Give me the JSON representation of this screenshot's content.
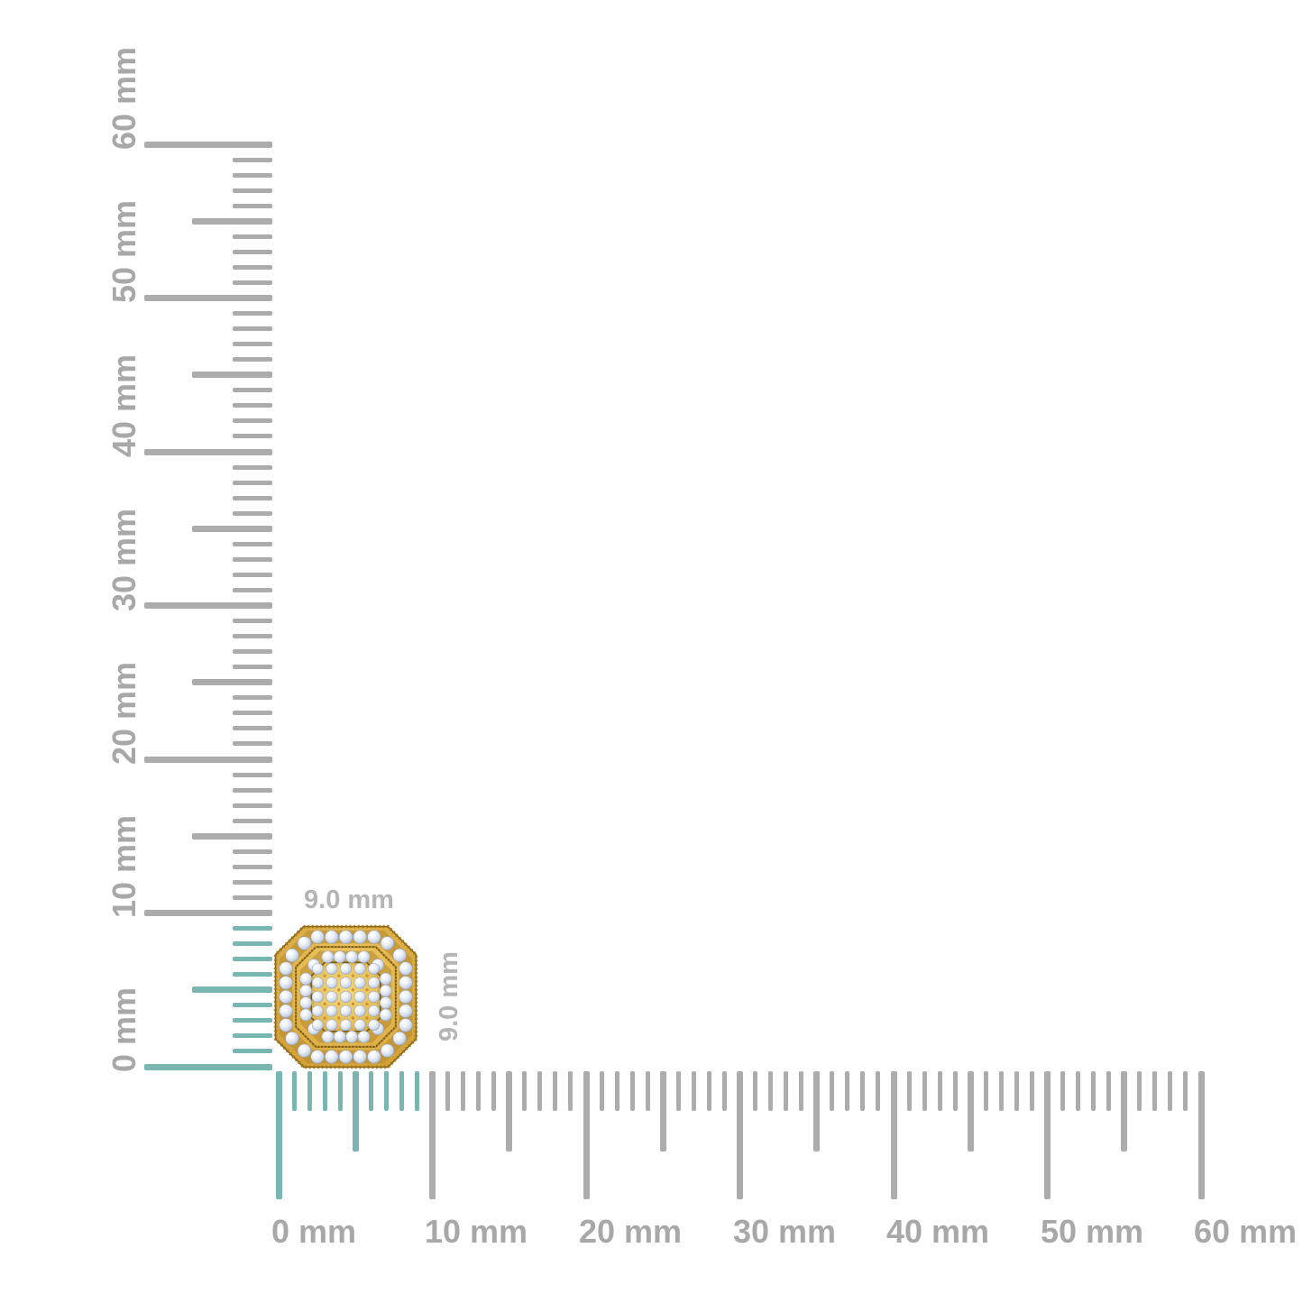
{
  "page": {
    "background": "#ffffff",
    "description": "Size guide: octagonal diamond cluster stud earring shown against millimeter rulers"
  },
  "item": {
    "name": "octagonal halo diamond cluster stud earring",
    "material": "yellow gold with round diamonds",
    "width_label": "9.0 mm",
    "height_label": "9.0 mm"
  },
  "rulers": {
    "unit": "mm",
    "min_mm": 0,
    "max_mm": 60,
    "minor_tick_every_mm": 1,
    "half_tick_every_mm": 5,
    "major_tick_every_mm": 10,
    "highlight_extent_mm": 9,
    "vertical_labels": [
      "0 mm",
      "10 mm",
      "20 mm",
      "30 mm",
      "40 mm",
      "50 mm",
      "60 mm"
    ],
    "horizontal_labels": [
      "0 mm",
      "10 mm",
      "20 mm",
      "30 mm",
      "40 mm",
      "50 mm",
      "60 mm"
    ],
    "colors": {
      "tick_gray": "#acacac",
      "tick_highlight_teal": "#79b5b1",
      "label_gray": "#a8a8a8",
      "item_label_gray": "#b5b5b5"
    }
  },
  "earring_colors": {
    "gold_light": "#f6dd8d",
    "gold_mid": "#e6bb52",
    "gold_deep": "#bb8a29",
    "gold_outline": "#8a6413",
    "channel_dark": "#7e5c10",
    "bead_gold": "#c1922e",
    "diamond_white": "#ffffff",
    "diamond_body": "#cfd9e8",
    "diamond_shadow": "#9fadc6"
  }
}
